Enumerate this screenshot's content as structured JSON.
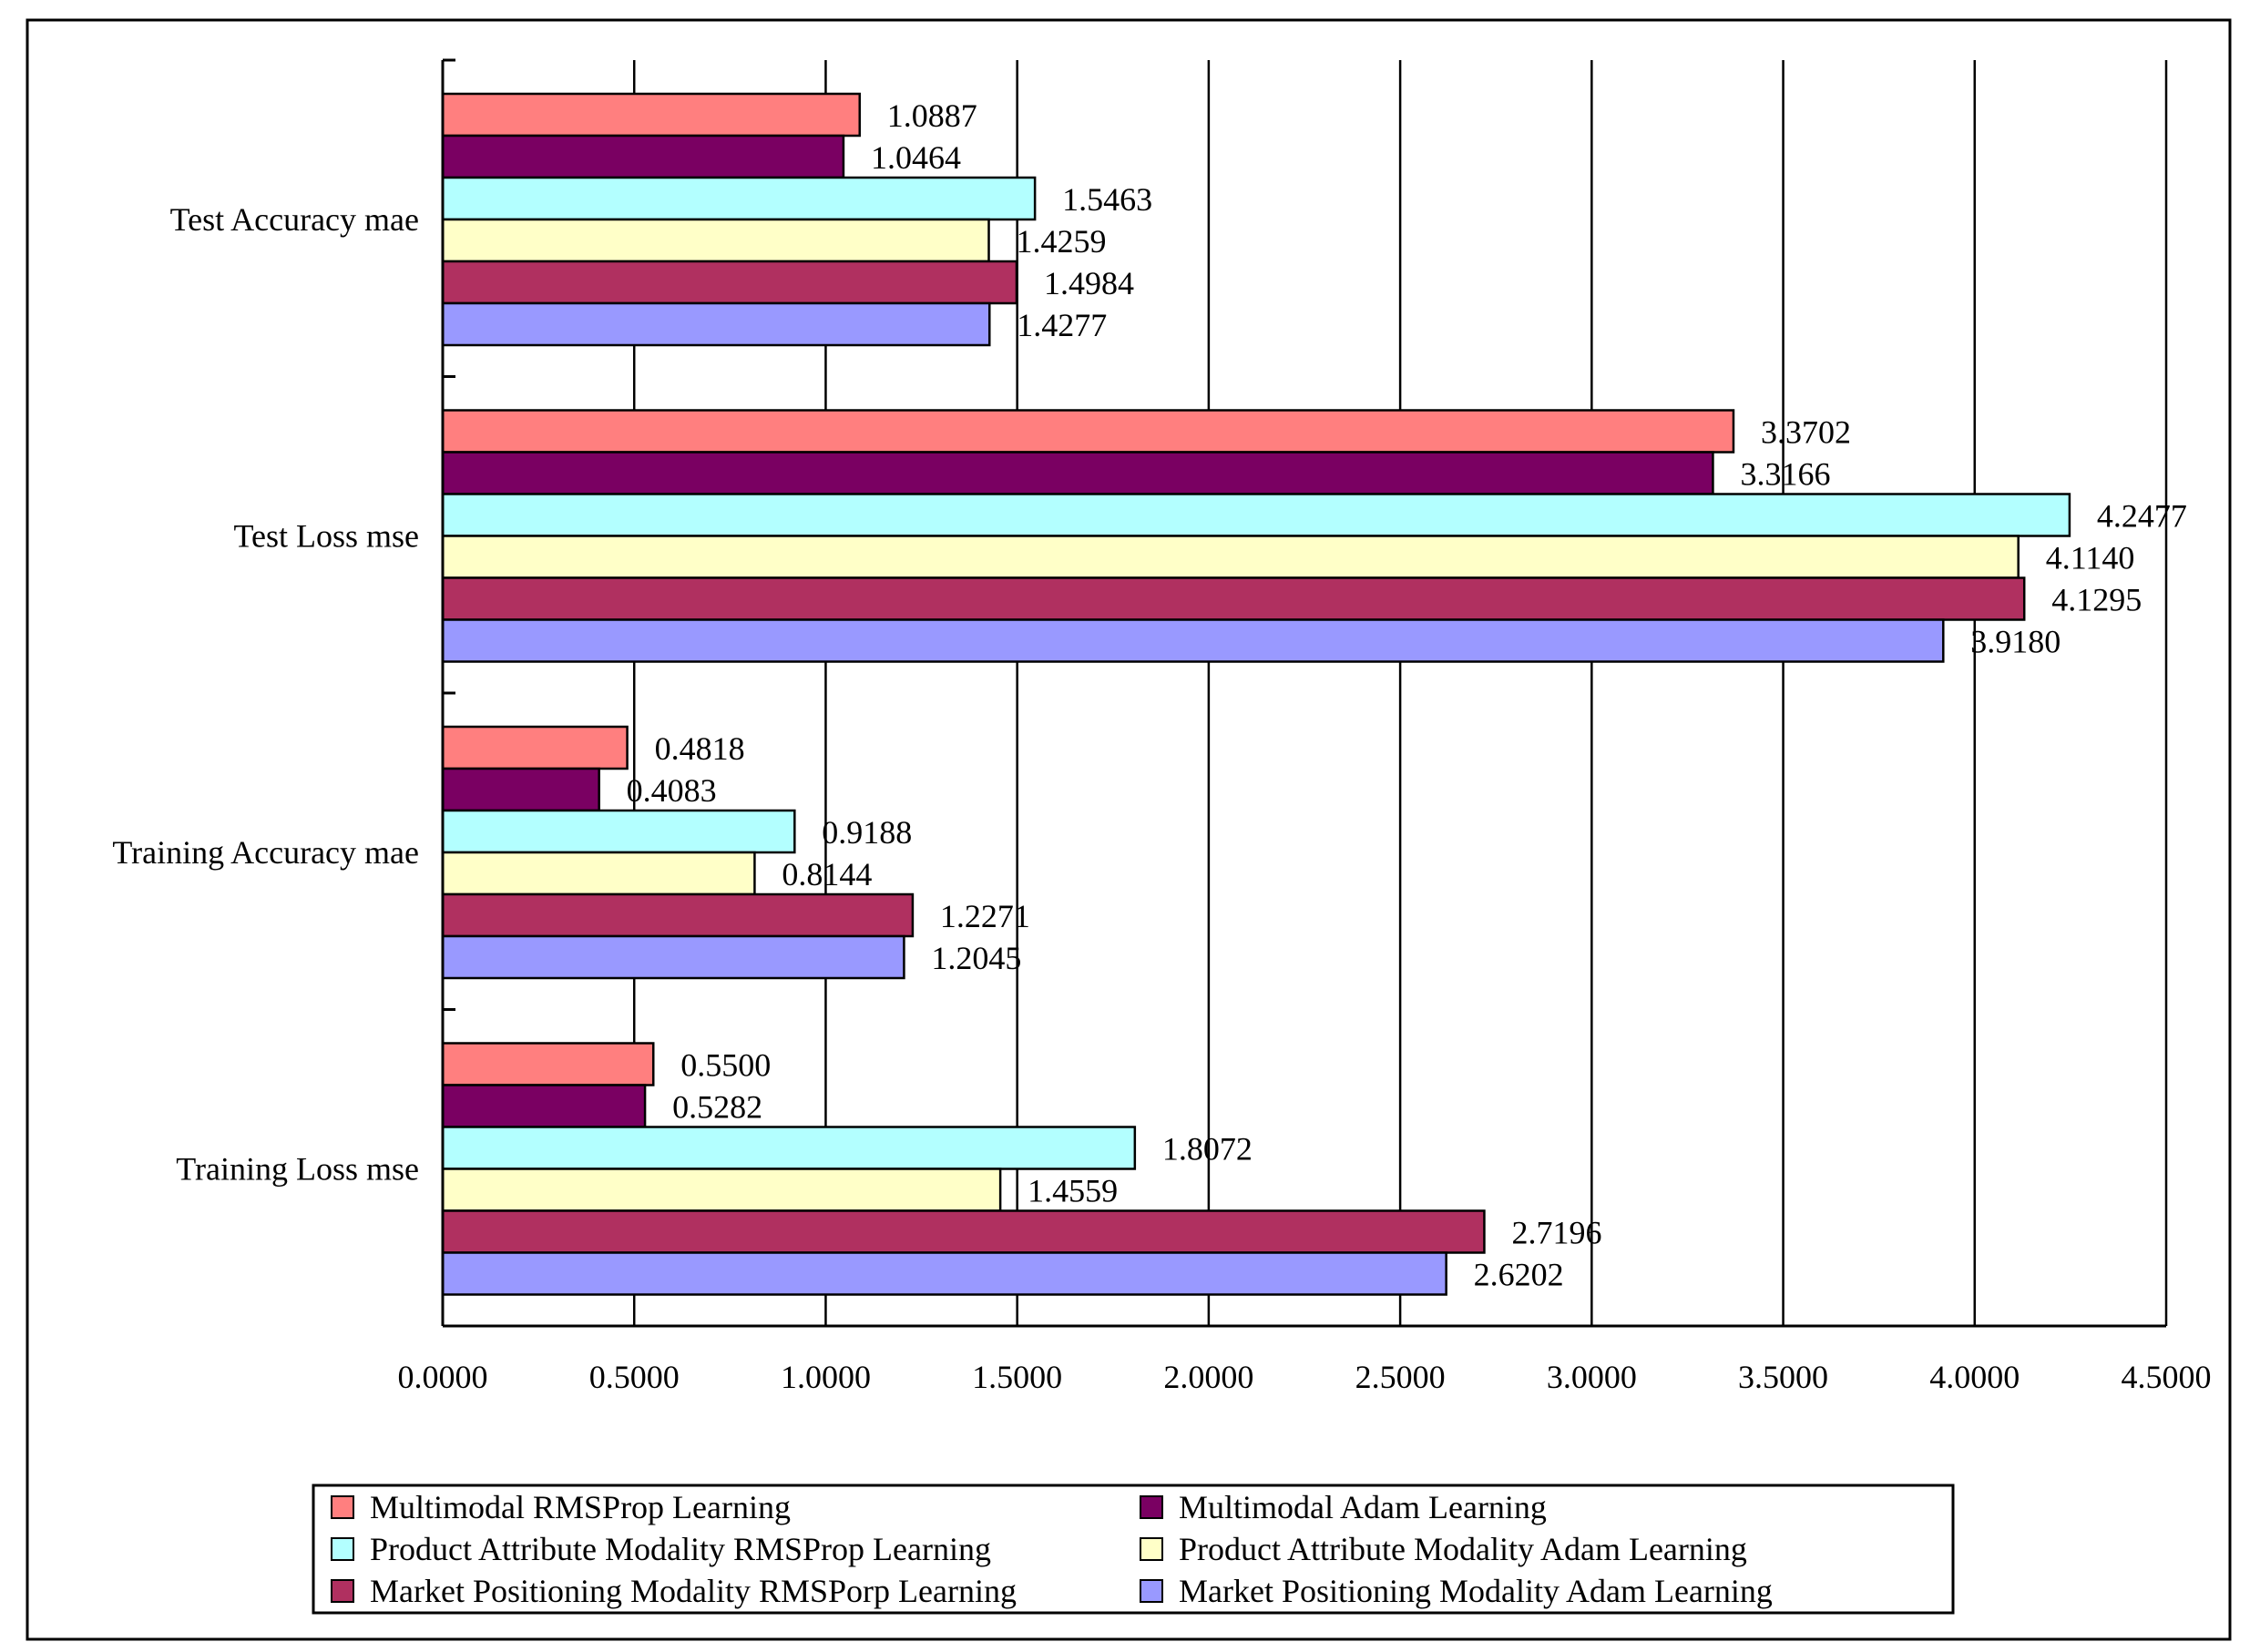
{
  "chart_data": {
    "type": "bar",
    "orientation": "horizontal",
    "title": "",
    "xlabel": "",
    "ylabel": "",
    "xlim": [
      0,
      4.5
    ],
    "x_ticks": [
      "0.0000",
      "0.5000",
      "1.0000",
      "1.5000",
      "2.0000",
      "2.5000",
      "3.0000",
      "3.5000",
      "4.0000",
      "4.5000"
    ],
    "categories": [
      "Test Accuracy mae",
      "Test Loss mse",
      "Training Accuracy mae",
      "Training Loss mse"
    ],
    "grid": "vertical",
    "legend_position": "bottom-center",
    "series": [
      {
        "name": "Multimodal RMSProp Learning",
        "color": "#FF7F7F",
        "values": [
          1.0887,
          3.3702,
          0.4818,
          0.55
        ],
        "labels": [
          "1.0887",
          "3.3702",
          "0.4818",
          "0.5500"
        ]
      },
      {
        "name": "Multimodal Adam Learning",
        "color": "#7A0062",
        "values": [
          1.0464,
          3.3166,
          0.4083,
          0.5282
        ],
        "labels": [
          "1.0464",
          "3.3166",
          "0.4083",
          "0.5282"
        ]
      },
      {
        "name": "Product Attribute Modality RMSProp Learning",
        "color": "#B3FFFF",
        "values": [
          1.5463,
          4.2477,
          0.9188,
          1.8072
        ],
        "labels": [
          "1.5463",
          "4.2477",
          "0.9188",
          "1.8072"
        ]
      },
      {
        "name": "Product Attribute Modality Adam Learning",
        "color": "#FFFFC8",
        "values": [
          1.4259,
          4.114,
          0.8144,
          1.4559
        ],
        "labels": [
          "1.4259",
          "4.1140",
          "0.8144",
          "1.4559"
        ]
      },
      {
        "name": "Market Positioning Modality RMSPorp Learning",
        "color": "#B03060",
        "values": [
          1.4984,
          4.1295,
          1.2271,
          2.7196
        ],
        "labels": [
          "1.4984",
          "4.1295",
          "1.2271",
          "2.7196"
        ]
      },
      {
        "name": "Market Positioning Modality Adam Learning",
        "color": "#9999FF",
        "values": [
          1.4277,
          3.918,
          1.2045,
          2.6202
        ],
        "labels": [
          "1.4277",
          "3.9180",
          "1.2045",
          "2.6202"
        ]
      }
    ]
  }
}
